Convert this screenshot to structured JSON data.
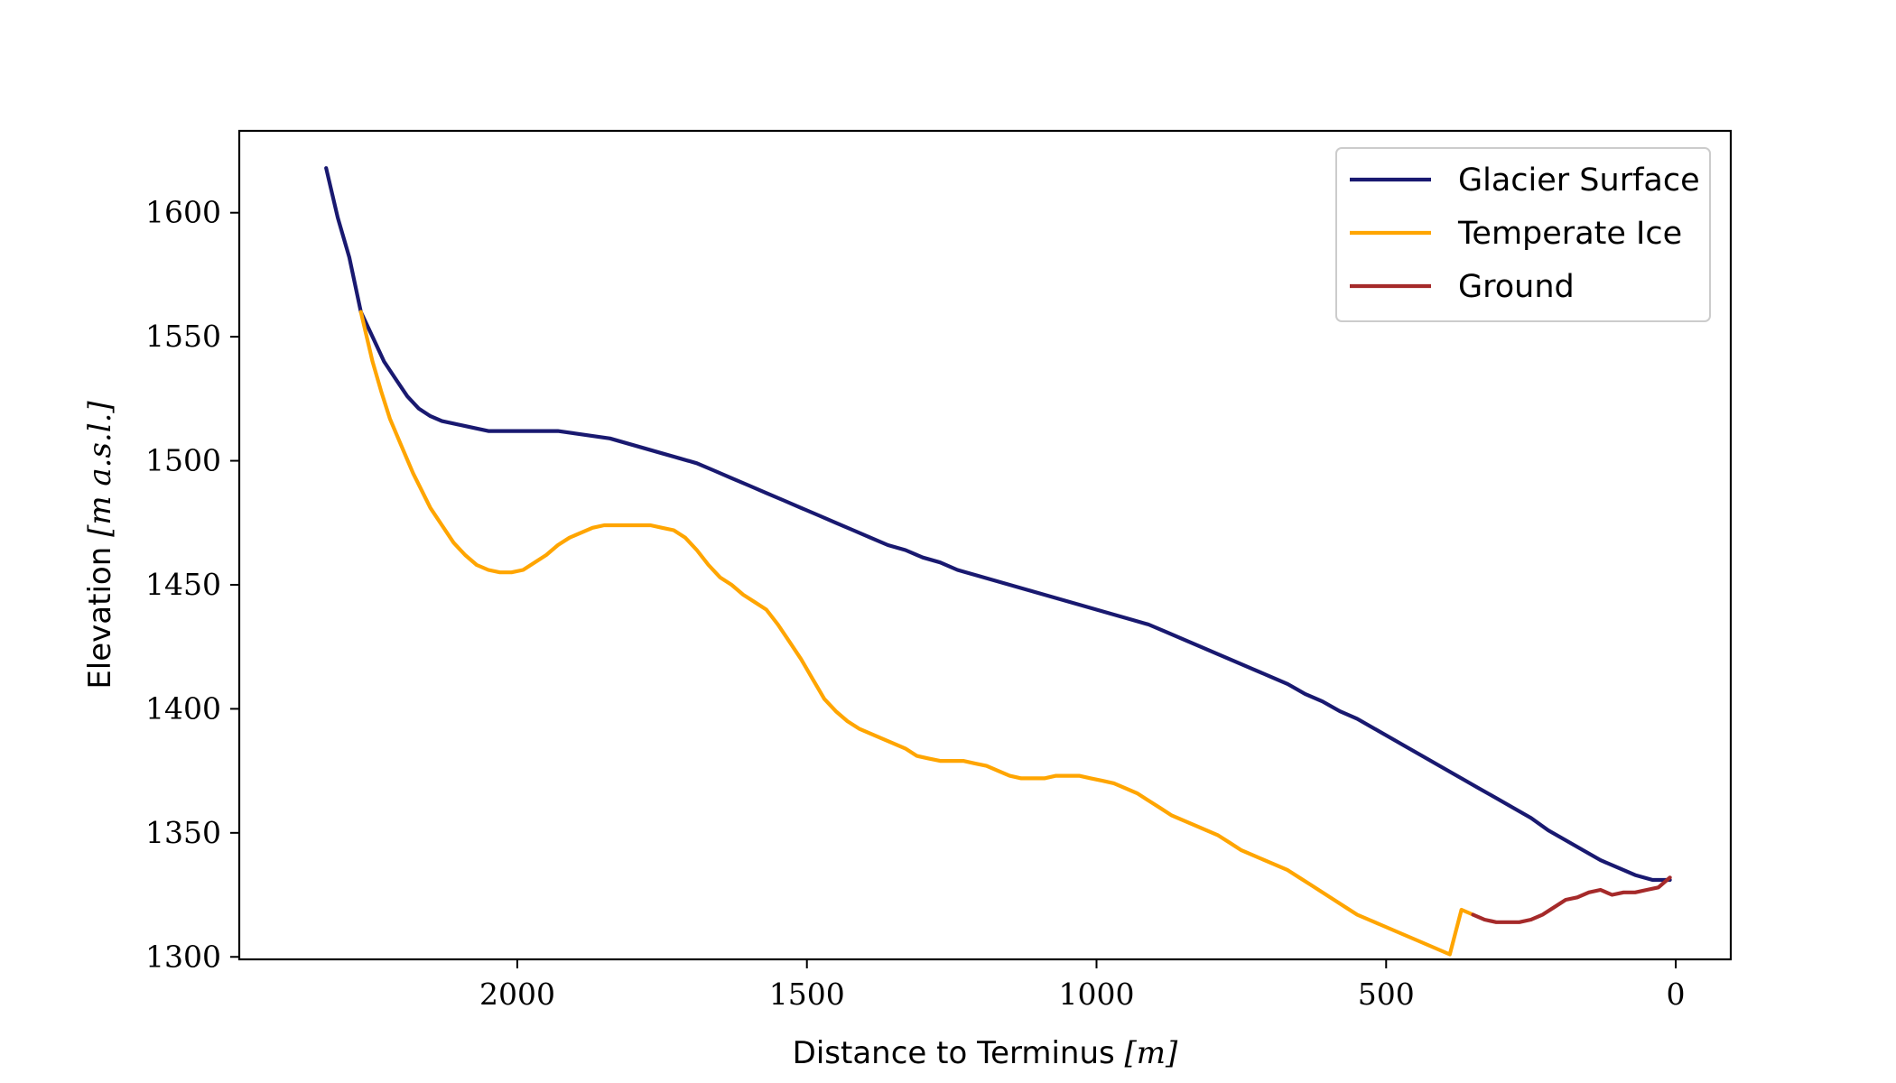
{
  "chart_data": {
    "type": "line",
    "title": "",
    "xlabel": {
      "text": "Distance to Terminus ",
      "unit": "[m]"
    },
    "ylabel": {
      "text": "Elevation ",
      "unit": "[m a.s.l.]"
    },
    "xlim": [
      2480,
      -95
    ],
    "ylim": [
      1299,
      1633
    ],
    "x_ticks": [
      2000,
      1500,
      1000,
      500,
      0
    ],
    "x_tick_labels": [
      "2000",
      "1500",
      "1000",
      "500",
      "0"
    ],
    "y_ticks": [
      1300,
      1350,
      1400,
      1450,
      1500,
      1550,
      1600
    ],
    "y_tick_labels": [
      "1300",
      "1350",
      "1400",
      "1450",
      "1500",
      "1550",
      "1600"
    ],
    "grid": false,
    "legend_position": "top-right",
    "series": [
      {
        "name": "Glacier Surface",
        "color": "#191970",
        "x": [
          2330,
          2310,
          2290,
          2270,
          2250,
          2230,
          2210,
          2190,
          2170,
          2150,
          2130,
          2110,
          2090,
          2070,
          2050,
          2030,
          2010,
          1990,
          1970,
          1950,
          1930,
          1900,
          1870,
          1840,
          1810,
          1780,
          1750,
          1720,
          1690,
          1660,
          1630,
          1600,
          1570,
          1540,
          1510,
          1480,
          1450,
          1420,
          1390,
          1360,
          1330,
          1300,
          1270,
          1240,
          1210,
          1180,
          1150,
          1120,
          1090,
          1060,
          1030,
          1000,
          970,
          940,
          910,
          880,
          850,
          820,
          790,
          760,
          730,
          700,
          670,
          640,
          610,
          580,
          550,
          520,
          490,
          460,
          430,
          400,
          370,
          340,
          310,
          280,
          250,
          220,
          190,
          160,
          130,
          100,
          70,
          40,
          20,
          10
        ],
        "y": [
          1618,
          1598,
          1582,
          1560,
          1550,
          1540,
          1533,
          1526,
          1521,
          1518,
          1516,
          1515,
          1514,
          1513,
          1512,
          1512,
          1512,
          1512,
          1512,
          1512,
          1512,
          1511,
          1510,
          1509,
          1507,
          1505,
          1503,
          1501,
          1499,
          1496,
          1493,
          1490,
          1487,
          1484,
          1481,
          1478,
          1475,
          1472,
          1469,
          1466,
          1464,
          1461,
          1459,
          1456,
          1454,
          1452,
          1450,
          1448,
          1446,
          1444,
          1442,
          1440,
          1438,
          1436,
          1434,
          1431,
          1428,
          1425,
          1422,
          1419,
          1416,
          1413,
          1410,
          1406,
          1403,
          1399,
          1396,
          1392,
          1388,
          1384,
          1380,
          1376,
          1372,
          1368,
          1364,
          1360,
          1356,
          1351,
          1347,
          1343,
          1339,
          1336,
          1333,
          1331,
          1331,
          1331
        ]
      },
      {
        "name": "Temperate Ice",
        "color": "#FFA500",
        "x": [
          2270,
          2250,
          2235,
          2220,
          2200,
          2180,
          2165,
          2150,
          2130,
          2110,
          2090,
          2070,
          2050,
          2030,
          2010,
          1990,
          1970,
          1950,
          1930,
          1910,
          1890,
          1870,
          1850,
          1830,
          1810,
          1790,
          1770,
          1750,
          1730,
          1710,
          1690,
          1670,
          1650,
          1630,
          1610,
          1590,
          1570,
          1550,
          1530,
          1510,
          1490,
          1470,
          1450,
          1430,
          1410,
          1390,
          1370,
          1350,
          1330,
          1310,
          1290,
          1270,
          1250,
          1230,
          1210,
          1190,
          1170,
          1150,
          1130,
          1110,
          1090,
          1070,
          1050,
          1030,
          1010,
          990,
          970,
          950,
          930,
          910,
          890,
          870,
          850,
          830,
          810,
          790,
          770,
          750,
          730,
          710,
          690,
          670,
          650,
          630,
          610,
          590,
          570,
          550,
          530,
          510,
          490,
          470,
          450,
          430,
          410,
          390,
          370,
          350
        ],
        "y": [
          1560,
          1540,
          1528,
          1517,
          1506,
          1495,
          1488,
          1481,
          1474,
          1467,
          1462,
          1458,
          1456,
          1455,
          1455,
          1456,
          1459,
          1462,
          1466,
          1469,
          1471,
          1473,
          1474,
          1474,
          1474,
          1474,
          1474,
          1473,
          1472,
          1469,
          1464,
          1458,
          1453,
          1450,
          1446,
          1443,
          1440,
          1434,
          1427,
          1420,
          1412,
          1404,
          1399,
          1395,
          1392,
          1390,
          1388,
          1386,
          1384,
          1381,
          1380,
          1379,
          1379,
          1379,
          1378,
          1377,
          1375,
          1373,
          1372,
          1372,
          1372,
          1373,
          1373,
          1373,
          1372,
          1371,
          1370,
          1368,
          1366,
          1363,
          1360,
          1357,
          1355,
          1353,
          1351,
          1349,
          1346,
          1343,
          1341,
          1339,
          1337,
          1335,
          1332,
          1329,
          1326,
          1323,
          1320,
          1317,
          1315,
          1313,
          1311,
          1309,
          1307,
          1305,
          1303,
          1301,
          1319,
          1317
        ]
      },
      {
        "name": "Ground",
        "color": "#A52A2A",
        "x": [
          350,
          330,
          310,
          290,
          270,
          250,
          230,
          210,
          190,
          170,
          150,
          130,
          110,
          90,
          70,
          50,
          30,
          10
        ],
        "y": [
          1317,
          1315,
          1314,
          1314,
          1314,
          1315,
          1317,
          1320,
          1323,
          1324,
          1326,
          1327,
          1325,
          1326,
          1326,
          1327,
          1328,
          1332
        ]
      }
    ]
  }
}
